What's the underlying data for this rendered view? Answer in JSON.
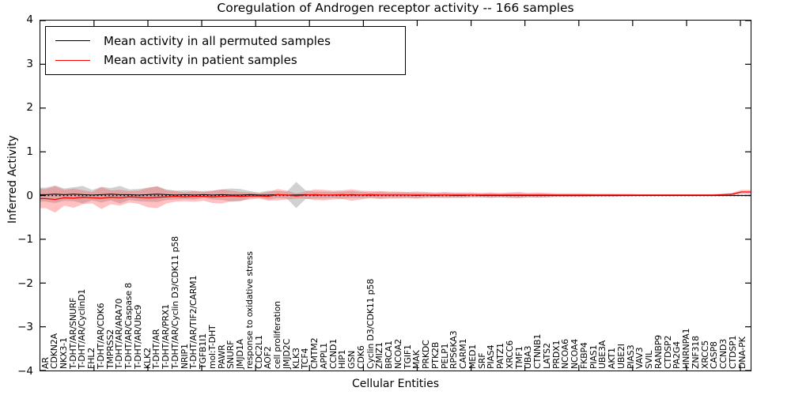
{
  "chart_data": {
    "type": "line",
    "title": "Coregulation of Androgen receptor activity -- 166 samples",
    "xlabel": "Cellular Entities",
    "ylabel": "Inferred Activity",
    "ylim": [
      -4,
      4
    ],
    "yticks": [
      4,
      3,
      2,
      1,
      0,
      -1,
      -2,
      -3,
      -4
    ],
    "grid": false,
    "legend_position": "upper left",
    "zero_reference_line": {
      "y": 0,
      "style": "dotted",
      "color": "#000000"
    },
    "band_meaning": "shaded region = +/- spread around each mean line",
    "categories": [
      "AR",
      "CDKN2A",
      "NKX3-1",
      "T-DHT/AR/SNURF",
      "T-DHT/AR/CyclinD1",
      "FHL2",
      "T-DHT/AR/CDK6",
      "TMPRSS2",
      "T-DHT/AR/ARA70",
      "T-DHT/AR/Caspase 8",
      "T-DHT/AR/Ubc9",
      "KLK2",
      "T-DHT/AR",
      "T-DHT/AR/PRX1",
      "T-DHT/AR/Cyclin D3/CDK11 p58",
      "NRIP1",
      "T-DHT/AR/TIF2/CARM1",
      "TGFB1I1",
      "mol:T-DHT",
      "PAWR",
      "SNURF",
      "JMJD1A",
      "response to oxidative stress",
      "CDC2L1",
      "AOF2",
      "cell proliferation",
      "JMJD2C",
      "KLK3",
      "TCF4",
      "CMTM2",
      "APPL1",
      "CCND1",
      "HIP1",
      "GSN",
      "CDK6",
      "Cyclin D3/CDK11 p58",
      "ZMIZ1",
      "BRCA1",
      "NCOA2",
      "TGIF1",
      "MAK",
      "PRKDC",
      "PTK2B",
      "PELP1",
      "RPS6KA3",
      "CARM1",
      "MED1",
      "SRF",
      "PIAS4",
      "PATZ1",
      "XRCC6",
      "TMF1",
      "UBA3",
      "CTNNB1",
      "LATS2",
      "PRDX1",
      "NCOA6",
      "NCOA4",
      "FKBP4",
      "PIAS1",
      "UBE3A",
      "AKT1",
      "UBE2I",
      "PIAS3",
      "VAV3",
      "SVIL",
      "RANBP9",
      "CTDSP2",
      "PA2G4",
      "HNRNPA1",
      "ZNF318",
      "XRCC5",
      "CASP8",
      "CCND3",
      "CTDSP1",
      "DNA-PK"
    ],
    "series": [
      {
        "name": "Mean activity in all permuted samples",
        "color": "#000000",
        "band_color": "#999999",
        "band_opacity": 0.45,
        "values": [
          0.02,
          0.03,
          0.02,
          0.03,
          0.02,
          0.01,
          0.02,
          0.03,
          0.02,
          0.02,
          0.01,
          0.02,
          0.03,
          0.02,
          0.01,
          0.02,
          0.01,
          0.02,
          0.01,
          0.02,
          0.01,
          0.01,
          0.02,
          0.01,
          0.01,
          0.02,
          0.01,
          0.01,
          0.02,
          0.01,
          0.01,
          0.01,
          0.01,
          0.02,
          0.01,
          0.01,
          0.01,
          0.01,
          0.01,
          0.01,
          0,
          0.01,
          0,
          0.01,
          0,
          0,
          0.01,
          0,
          0,
          0,
          0,
          0,
          0,
          0,
          0,
          0,
          0,
          0,
          0,
          0,
          0,
          0,
          0,
          0,
          0,
          0,
          0,
          0,
          0,
          0,
          0,
          0,
          0,
          0,
          0,
          0
        ],
        "band": [
          0.16,
          0.2,
          0.14,
          0.16,
          0.2,
          0.12,
          0.18,
          0.14,
          0.2,
          0.12,
          0.14,
          0.16,
          0.18,
          0.12,
          0.1,
          0.1,
          0.1,
          0.08,
          0.1,
          0.12,
          0.15,
          0.14,
          0.08,
          0.06,
          0.1,
          0.08,
          0.08,
          0.3,
          0.1,
          0.08,
          0.08,
          0.07,
          0.08,
          0.08,
          0.07,
          0.06,
          0.07,
          0.06,
          0.06,
          0.06,
          0.06,
          0.05,
          0.05,
          0.05,
          0.05,
          0.05,
          0.04,
          0.04,
          0.05,
          0.04,
          0.05,
          0.05,
          0.04,
          0.04,
          0.04,
          0.03,
          0.03,
          0.03,
          0.03,
          0.03,
          0.03,
          0.03,
          0.02,
          0.02,
          0.02,
          0.02,
          0.02,
          0.02,
          0.02,
          0.02,
          0.02,
          0.02,
          0.02,
          0.02,
          0.02,
          0.02
        ]
      },
      {
        "name": "Mean activity in patient samples",
        "color": "#ff0000",
        "band_color": "#ff4d4d",
        "band_opacity": 0.35,
        "values": [
          -0.07,
          -0.09,
          -0.05,
          -0.06,
          -0.04,
          -0.05,
          -0.06,
          -0.04,
          -0.05,
          -0.03,
          -0.04,
          -0.05,
          -0.04,
          -0.03,
          -0.02,
          -0.03,
          -0.02,
          -0.02,
          -0.03,
          -0.02,
          -0.01,
          -0.02,
          -0.01,
          -0.01,
          -0.02,
          0.02,
          0.01,
          -0.01,
          0.01,
          0.02,
          0.01,
          0.01,
          0.02,
          0.01,
          0.01,
          0.02,
          0.01,
          0.01,
          0.01,
          0.01,
          0.01,
          0.01,
          0.01,
          0.01,
          0.01,
          0.01,
          0.01,
          0.01,
          0.01,
          0.01,
          0.01,
          0.01,
          0.01,
          0.01,
          0.01,
          0.01,
          0.01,
          0.01,
          0.01,
          0.01,
          0.01,
          0.01,
          0.01,
          0.01,
          0.01,
          0.01,
          0.01,
          0.01,
          0.01,
          0.01,
          0.01,
          0.01,
          0.01,
          0.02,
          0.03,
          0.08
        ],
        "band": [
          0.22,
          0.3,
          0.18,
          0.22,
          0.16,
          0.13,
          0.25,
          0.16,
          0.18,
          0.13,
          0.15,
          0.22,
          0.25,
          0.15,
          0.12,
          0.1,
          0.12,
          0.1,
          0.14,
          0.16,
          0.12,
          0.1,
          0.08,
          0.06,
          0.1,
          0.13,
          0.1,
          0.06,
          0.08,
          0.12,
          0.12,
          0.1,
          0.1,
          0.13,
          0.1,
          0.08,
          0.09,
          0.08,
          0.08,
          0.07,
          0.08,
          0.07,
          0.06,
          0.07,
          0.06,
          0.06,
          0.06,
          0.05,
          0.06,
          0.05,
          0.06,
          0.07,
          0.05,
          0.06,
          0.05,
          0.04,
          0.04,
          0.04,
          0.04,
          0.03,
          0.03,
          0.03,
          0.03,
          0.03,
          0.02,
          0.02,
          0.02,
          0.02,
          0.02,
          0.02,
          0.02,
          0.02,
          0.02,
          0.02,
          0.03,
          0.05
        ]
      }
    ]
  }
}
